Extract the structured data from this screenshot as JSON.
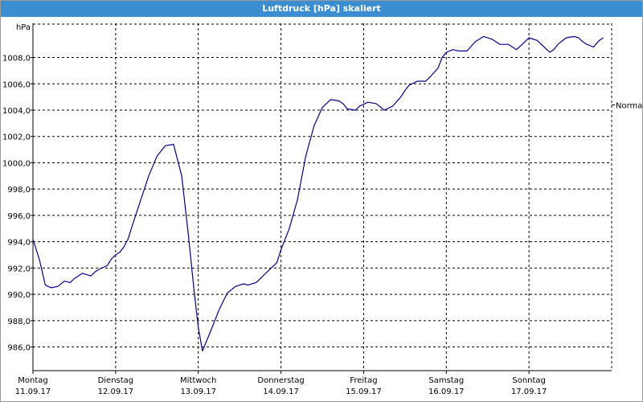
{
  "window": {
    "title": "Luftdruck [hPa] skaliert"
  },
  "chart_data": {
    "type": "line",
    "title": "Luftdruck [hPa] skaliert",
    "ylabel": "hPa",
    "xlabel": "",
    "ylim": [
      984.2,
      1010.6
    ],
    "xlim": [
      0,
      7
    ],
    "y_ticks": [
      986.0,
      988.0,
      990.0,
      992.0,
      994.0,
      996.0,
      998.0,
      1000.0,
      1002.0,
      1004.0,
      1006.0,
      1008.0
    ],
    "y_tick_labels": [
      "986,0",
      "988,0",
      "990,0",
      "992,0",
      "994,0",
      "996,0",
      "998,0",
      "1000,0",
      "1002,0",
      "1004,0",
      "1006,0",
      "1008,0"
    ],
    "x_ticks": [
      {
        "pos": 0,
        "day": "Montag",
        "date": "11.09.17"
      },
      {
        "pos": 1,
        "day": "Dienstag",
        "date": "12.09.17"
      },
      {
        "pos": 2,
        "day": "Mittwoch",
        "date": "13.09.17"
      },
      {
        "pos": 3,
        "day": "Donnerstag",
        "date": "14.09.17"
      },
      {
        "pos": 4,
        "day": "Freitag",
        "date": "15.09.17"
      },
      {
        "pos": 5,
        "day": "Samstag",
        "date": "16.09.17"
      },
      {
        "pos": 6,
        "day": "Sonntag",
        "date": "17.09.17"
      }
    ],
    "reference_line": {
      "value": 1004.4,
      "label": "Normal"
    },
    "grid": true,
    "series": [
      {
        "color": "#00008b",
        "x": [
          0,
          0.08,
          0.15,
          0.22,
          0.3,
          0.38,
          0.45,
          0.5,
          0.6,
          0.7,
          0.75,
          0.8,
          0.9,
          0.95,
          1.0,
          1.05,
          1.1,
          1.15,
          1.2,
          1.3,
          1.4,
          1.5,
          1.6,
          1.7,
          1.8,
          1.88,
          1.95,
          2.0,
          2.05,
          2.15,
          2.25,
          2.35,
          2.45,
          2.5,
          2.55,
          2.6,
          2.7,
          2.8,
          2.85,
          2.95,
          3.0,
          3.1,
          3.2,
          3.3,
          3.4,
          3.5,
          3.6,
          3.7,
          3.75,
          3.8,
          3.9,
          3.95,
          4.05,
          4.15,
          4.25,
          4.35,
          4.45,
          4.5,
          4.55,
          4.65,
          4.75,
          4.8,
          4.9,
          4.95,
          5.0,
          5.08,
          5.15,
          5.25,
          5.35,
          5.45,
          5.55,
          5.65,
          5.75,
          5.85,
          5.95,
          6.0,
          6.1,
          6.2,
          6.25,
          6.3,
          6.35,
          6.45,
          6.55,
          6.6,
          6.65,
          6.7,
          6.78,
          6.85,
          6.9
        ],
        "y": [
          994.2,
          992.6,
          990.7,
          990.5,
          990.6,
          991.0,
          990.9,
          991.2,
          991.6,
          991.4,
          991.7,
          991.9,
          992.2,
          992.7,
          993.0,
          993.2,
          993.6,
          994.2,
          995.2,
          997.1,
          999.0,
          1000.5,
          1001.3,
          1001.4,
          999.0,
          994.5,
          990.2,
          987.5,
          985.7,
          987.2,
          988.8,
          990.1,
          990.6,
          990.7,
          990.8,
          990.7,
          990.9,
          991.5,
          991.8,
          992.4,
          993.4,
          995.0,
          997.2,
          1000.5,
          1002.8,
          1004.2,
          1004.8,
          1004.7,
          1004.5,
          1004.1,
          1004.0,
          1004.3,
          1004.6,
          1004.5,
          1004.0,
          1004.3,
          1005.0,
          1005.5,
          1005.9,
          1006.2,
          1006.2,
          1006.5,
          1007.2,
          1008.0,
          1008.4,
          1008.6,
          1008.5,
          1008.5,
          1009.2,
          1009.6,
          1009.4,
          1009.0,
          1009.0,
          1008.6,
          1009.2,
          1009.5,
          1009.3,
          1008.7,
          1008.4,
          1008.6,
          1009.0,
          1009.5,
          1009.6,
          1009.5,
          1009.2,
          1009.0,
          1008.8,
          1009.3,
          1009.5
        ]
      }
    ]
  }
}
